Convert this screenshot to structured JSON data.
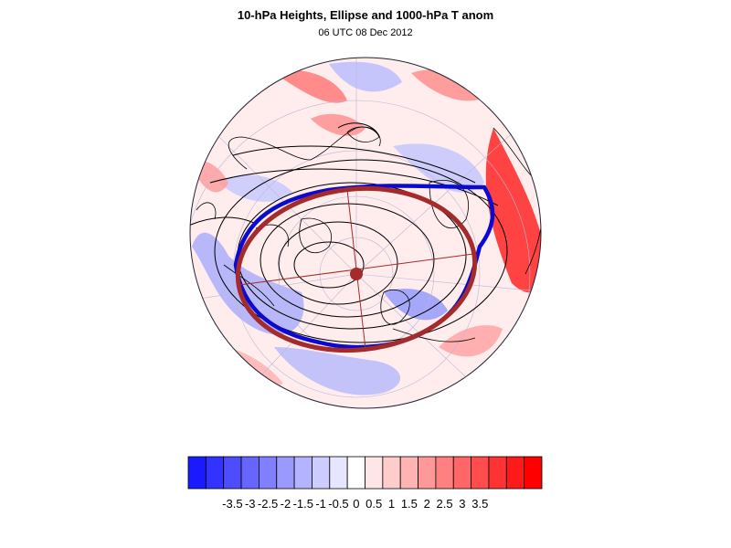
{
  "title": "10-hPa Heights, Ellipse and 1000-hPa T anom",
  "subtitle": "06 UTC 08 Dec 2012",
  "map": {
    "projection": "north polar stereographic",
    "field": "1000-hPa T anom",
    "contours": "10-hPa Heights",
    "ellipse_color": "#a52a2a",
    "ellipse_center_color": "#a52a2a",
    "vortex_edge_color": "#0000cc",
    "height_contour_color": "#000000",
    "coastline_color": "#000000"
  },
  "colorbar": {
    "colors": [
      "#1a1aff",
      "#3333ff",
      "#4d4dff",
      "#6666ff",
      "#8080ff",
      "#9999ff",
      "#b3b3ff",
      "#ccccff",
      "#e6e6ff",
      "#ffffff",
      "#ffe6e6",
      "#ffcccc",
      "#ffb3b3",
      "#ff9999",
      "#ff8080",
      "#ff6666",
      "#ff4d4d",
      "#ff3333",
      "#ff1a1a",
      "#ff0000"
    ],
    "labels": [
      "-3.5",
      "-3",
      "-2.5",
      "-2",
      "-1.5",
      "-1",
      "-0.5",
      "0",
      "0.5",
      "1",
      "1.5",
      "2",
      "2.5",
      "3",
      "3.5"
    ]
  }
}
